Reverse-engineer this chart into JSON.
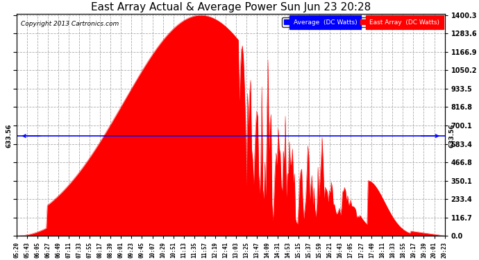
{
  "title": "East Array Actual & Average Power Sun Jun 23 20:28",
  "copyright": "Copyright 2013 Cartronics.com",
  "ylabel_right_ticks": [
    0.0,
    116.7,
    233.4,
    350.1,
    466.8,
    583.4,
    700.1,
    816.8,
    933.5,
    1050.2,
    1166.9,
    1283.6,
    1400.3
  ],
  "ymax": 1400.3,
  "ymin": 0.0,
  "average_line_y": 633.56,
  "average_label": "633.56",
  "background_color": "#ffffff",
  "plot_bg_color": "#ffffff",
  "grid_color": "#aaaaaa",
  "fill_color": "#ff0000",
  "line_color": "#ff0000",
  "average_line_color": "#0000ff",
  "title_fontsize": 11,
  "legend_entries": [
    "Average  (DC Watts)",
    "East Array  (DC Watts)"
  ],
  "legend_colors": [
    "#0000ff",
    "#ff0000"
  ],
  "x_tick_labels": [
    "05:20",
    "05:43",
    "06:05",
    "06:27",
    "06:49",
    "07:11",
    "07:33",
    "07:55",
    "08:17",
    "08:39",
    "09:01",
    "09:23",
    "09:45",
    "10:07",
    "10:29",
    "10:51",
    "11:13",
    "11:35",
    "11:57",
    "12:19",
    "12:41",
    "13:03",
    "13:25",
    "13:47",
    "14:09",
    "14:31",
    "14:53",
    "15:15",
    "15:37",
    "15:59",
    "16:21",
    "16:43",
    "17:05",
    "17:27",
    "17:49",
    "18:11",
    "18:33",
    "18:55",
    "19:17",
    "19:39",
    "20:01",
    "20:23"
  ],
  "num_points": 420
}
